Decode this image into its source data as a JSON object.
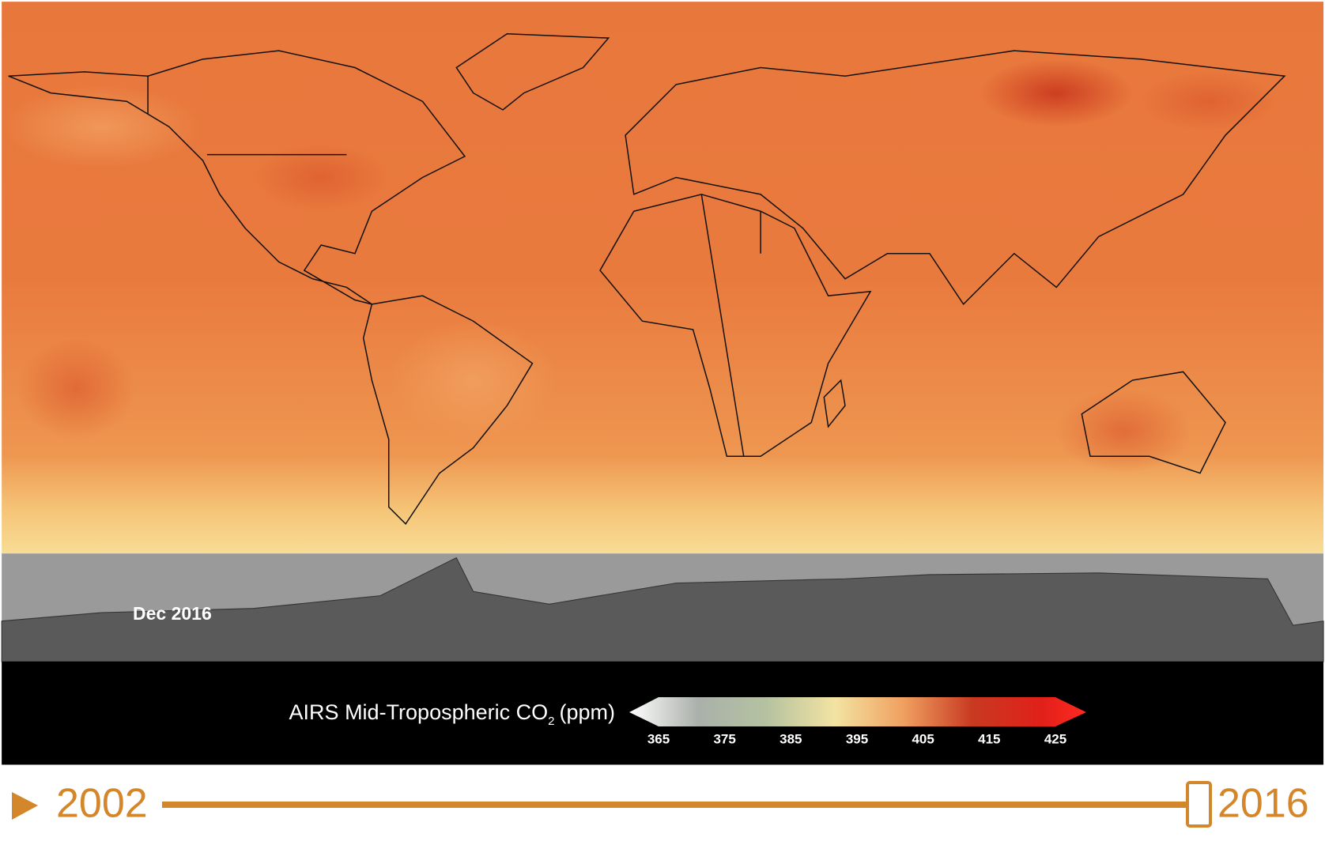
{
  "map": {
    "date_label": "Dec 2016",
    "colorbar": {
      "title": "AIRS Mid-Tropospheric CO",
      "title_sub": "2",
      "unit": "(ppm)",
      "ticks": [
        365,
        375,
        385,
        395,
        405,
        415,
        425
      ]
    }
  },
  "timeline": {
    "start": "2002",
    "end": "2016"
  }
}
